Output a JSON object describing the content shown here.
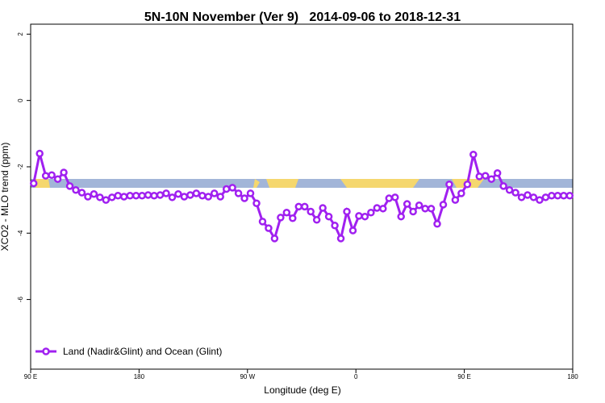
{
  "chart_data": {
    "type": "line",
    "title": "5N-10N November (Ver 9)   2014-09-06 to 2018-12-31",
    "xlabel": "Longitude (deg E)",
    "ylabel": "XCO2 - MLO trend (ppm)",
    "xlim": [
      90,
      540
    ],
    "xticks": [
      {
        "value": 90,
        "label": "90 E"
      },
      180,
      {
        "value": 270,
        "label": "90 W"
      },
      {
        "value": 360,
        "label": "0"
      },
      {
        "value": 450,
        "label": "90 E"
      },
      {
        "value": 540,
        "label": "180"
      }
    ],
    "ylim": [
      -8.1,
      2.3
    ],
    "yticks": [
      2,
      0,
      -2,
      -4,
      -6
    ],
    "grid": false,
    "legend": "bottom-left",
    "x": [
      92.5,
      97.5,
      102.5,
      107.5,
      112.5,
      117.5,
      122.5,
      127.5,
      132.5,
      137.5,
      142.5,
      147.5,
      152.5,
      157.5,
      162.5,
      167.5,
      172.5,
      177.5,
      182.5,
      187.5,
      192.5,
      197.5,
      202.5,
      207.5,
      212.5,
      217.5,
      222.5,
      227.5,
      232.5,
      237.5,
      242.5,
      247.5,
      252.5,
      257.5,
      262.5,
      267.5,
      272.5,
      277.5,
      282.5,
      287.5,
      292.5,
      297.5,
      302.5,
      307.5,
      312.5,
      317.5,
      322.5,
      327.5,
      332.5,
      337.5,
      342.5,
      347.5,
      352.5,
      357.5,
      362.5,
      367.5,
      372.5,
      377.5,
      382.5,
      387.5,
      392.5,
      397.5,
      402.5,
      407.5,
      412.5,
      417.5,
      422.5,
      427.5,
      432.5,
      437.5,
      442.5,
      447.5,
      452.5,
      457.5,
      462.5,
      467.5,
      472.5,
      477.5,
      482.5,
      487.5,
      492.5,
      497.5,
      502.5,
      507.5,
      512.5,
      517.5,
      522.5,
      527.5,
      532.5,
      537.5
    ],
    "series": [
      {
        "name": "Land (Nadir&Glint) and Ocean (Glint)",
        "color": "#a020f0",
        "values": [
          -2.5,
          -1.6,
          -2.27,
          -2.25,
          -2.37,
          -2.17,
          -2.58,
          -2.7,
          -2.78,
          -2.9,
          -2.82,
          -2.92,
          -3.0,
          -2.92,
          -2.87,
          -2.9,
          -2.87,
          -2.87,
          -2.87,
          -2.85,
          -2.87,
          -2.85,
          -2.8,
          -2.92,
          -2.82,
          -2.9,
          -2.85,
          -2.8,
          -2.87,
          -2.9,
          -2.8,
          -2.9,
          -2.67,
          -2.63,
          -2.8,
          -2.95,
          -2.8,
          -3.1,
          -3.65,
          -3.85,
          -4.16,
          -3.53,
          -3.38,
          -3.55,
          -3.2,
          -3.2,
          -3.35,
          -3.6,
          -3.24,
          -3.5,
          -3.77,
          -4.16,
          -3.35,
          -3.92,
          -3.48,
          -3.5,
          -3.38,
          -3.24,
          -3.26,
          -2.95,
          -2.92,
          -3.5,
          -3.12,
          -3.35,
          -3.16,
          -3.26,
          -3.26,
          -3.72,
          -3.14,
          -2.53,
          -3.0,
          -2.8,
          -2.53,
          -1.63,
          -2.29,
          -2.27,
          -2.37,
          -2.19,
          -2.58,
          -2.7,
          -2.78,
          -2.92,
          -2.85,
          -2.92,
          -3.0,
          -2.92,
          -2.87,
          -2.87,
          -2.87,
          -2.87
        ]
      }
    ]
  }
}
